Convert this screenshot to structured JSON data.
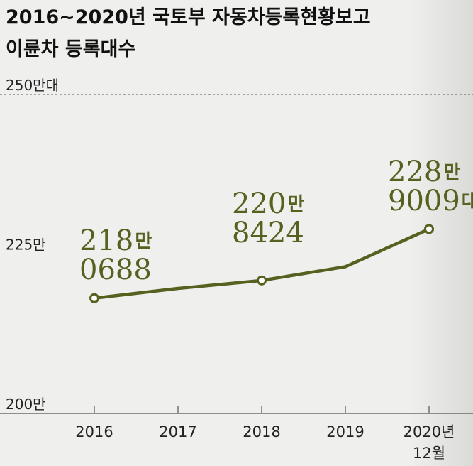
{
  "title_lines": [
    "2016~2020년 국토부 자동차등록현황보고",
    "이륜차 등록대수"
  ],
  "colors": {
    "line": "#55611f",
    "text": "#222222",
    "grid": "#555555"
  },
  "chart_data": {
    "type": "line",
    "title": "2016~2020년 국토부 자동차등록현황보고 이륜차 등록대수",
    "categories": [
      "2016",
      "2017",
      "2018",
      "2019",
      "2020년 12월"
    ],
    "x_tick_labels": [
      [
        "2016"
      ],
      [
        "2017"
      ],
      [
        "2018"
      ],
      [
        "2019"
      ],
      [
        "2020년",
        "12월"
      ]
    ],
    "series": [
      {
        "values": [
          2180688,
          2196000,
          2208424,
          2230000,
          2289009
        ]
      }
    ],
    "y_range": [
      2000000,
      2500000
    ],
    "y_ticks": [
      {
        "value": 2500000,
        "label": "250만대"
      },
      {
        "value": 2250000,
        "label": "225만"
      },
      {
        "value": 2000000,
        "label": "200만"
      }
    ],
    "grid": "dashed horizontal at y ticks",
    "data_labels": [
      {
        "index": 0,
        "lines": [
          {
            "num": "218",
            "unit": "만"
          },
          {
            "num": "0688",
            "unit": ""
          }
        ]
      },
      {
        "index": 2,
        "lines": [
          {
            "num": "220",
            "unit": "만"
          },
          {
            "num": "8424",
            "unit": ""
          }
        ]
      },
      {
        "index": 4,
        "lines": [
          {
            "num": "228",
            "unit": "만"
          },
          {
            "num": "9009",
            "unit": "대"
          }
        ]
      }
    ],
    "marked_points": [
      0,
      2,
      4
    ]
  }
}
